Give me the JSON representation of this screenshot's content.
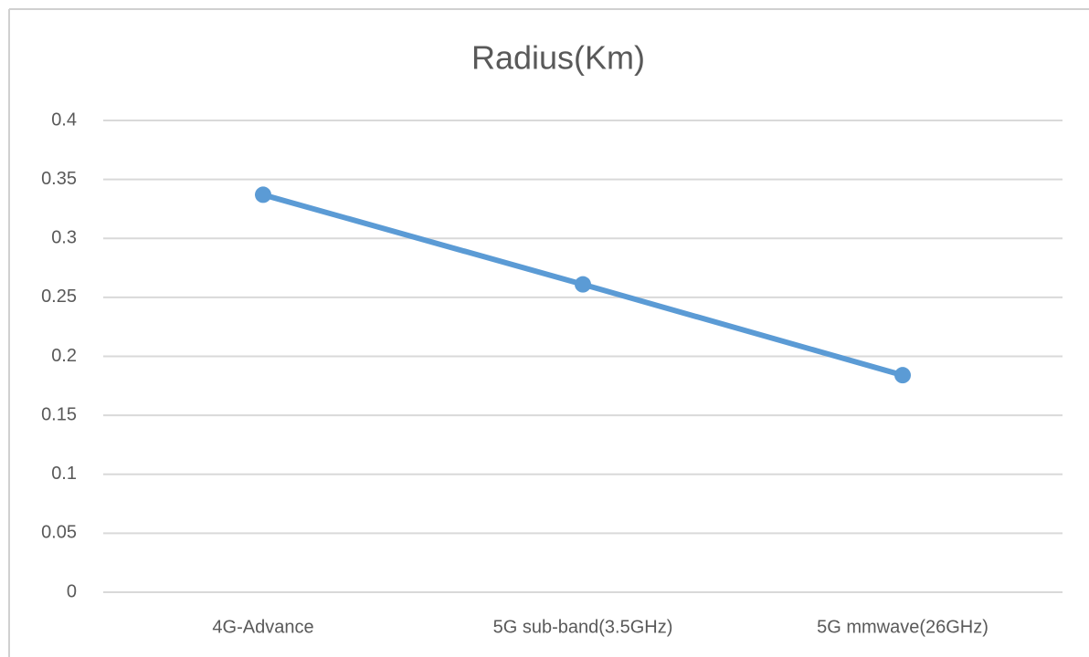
{
  "chart_data": {
    "type": "line",
    "title": "Radius(Km)",
    "categories": [
      "4G-Advance",
      "5G sub-band(3.5GHz)",
      "5G mmwave(26GHz)"
    ],
    "series": [
      {
        "name": "Radius(Km)",
        "color": "#5b9bd5",
        "values": [
          0.337,
          0.261,
          0.184
        ]
      }
    ],
    "ylim": [
      0,
      0.4
    ],
    "yticks": [
      0,
      0.05,
      0.1,
      0.15,
      0.2,
      0.25,
      0.3,
      0.35,
      0.4
    ],
    "grid": true
  }
}
